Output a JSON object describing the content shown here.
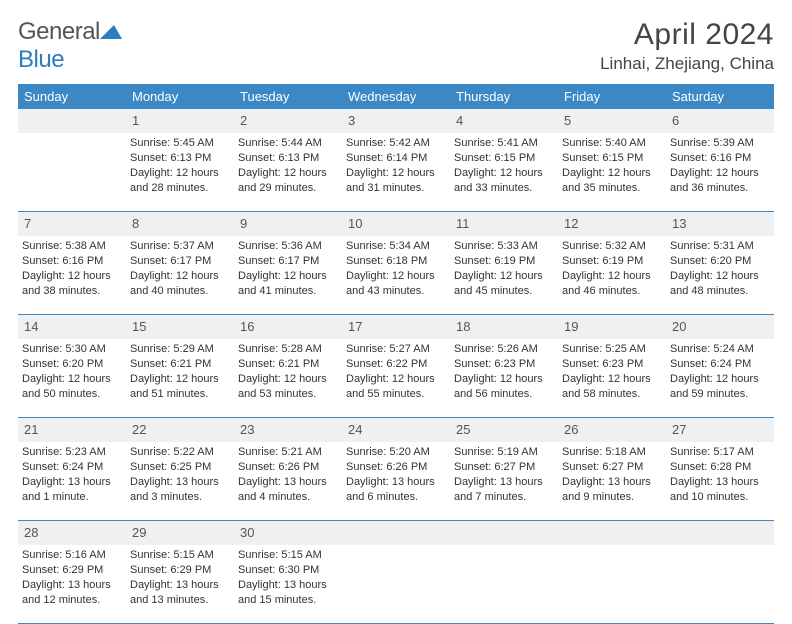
{
  "header": {
    "logo_general": "General",
    "logo_blue": "Blue",
    "month_title": "April 2024",
    "location": "Linhai, Zhejiang, China"
  },
  "colors": {
    "header_bar": "#3b88c4",
    "daynum_bg": "#eef0f2",
    "text": "#333333",
    "logo_blue": "#2d7bc0",
    "grid_line": "#3b88c4",
    "background": "#ffffff"
  },
  "weekdays": [
    "Sunday",
    "Monday",
    "Tuesday",
    "Wednesday",
    "Thursday",
    "Friday",
    "Saturday"
  ],
  "weeks": [
    [
      {
        "day": "",
        "lines": []
      },
      {
        "day": "1",
        "lines": [
          "Sunrise: 5:45 AM",
          "Sunset: 6:13 PM",
          "Daylight: 12 hours and 28 minutes."
        ]
      },
      {
        "day": "2",
        "lines": [
          "Sunrise: 5:44 AM",
          "Sunset: 6:13 PM",
          "Daylight: 12 hours and 29 minutes."
        ]
      },
      {
        "day": "3",
        "lines": [
          "Sunrise: 5:42 AM",
          "Sunset: 6:14 PM",
          "Daylight: 12 hours and 31 minutes."
        ]
      },
      {
        "day": "4",
        "lines": [
          "Sunrise: 5:41 AM",
          "Sunset: 6:15 PM",
          "Daylight: 12 hours and 33 minutes."
        ]
      },
      {
        "day": "5",
        "lines": [
          "Sunrise: 5:40 AM",
          "Sunset: 6:15 PM",
          "Daylight: 12 hours and 35 minutes."
        ]
      },
      {
        "day": "6",
        "lines": [
          "Sunrise: 5:39 AM",
          "Sunset: 6:16 PM",
          "Daylight: 12 hours and 36 minutes."
        ]
      }
    ],
    [
      {
        "day": "7",
        "lines": [
          "Sunrise: 5:38 AM",
          "Sunset: 6:16 PM",
          "Daylight: 12 hours and 38 minutes."
        ]
      },
      {
        "day": "8",
        "lines": [
          "Sunrise: 5:37 AM",
          "Sunset: 6:17 PM",
          "Daylight: 12 hours and 40 minutes."
        ]
      },
      {
        "day": "9",
        "lines": [
          "Sunrise: 5:36 AM",
          "Sunset: 6:17 PM",
          "Daylight: 12 hours and 41 minutes."
        ]
      },
      {
        "day": "10",
        "lines": [
          "Sunrise: 5:34 AM",
          "Sunset: 6:18 PM",
          "Daylight: 12 hours and 43 minutes."
        ]
      },
      {
        "day": "11",
        "lines": [
          "Sunrise: 5:33 AM",
          "Sunset: 6:19 PM",
          "Daylight: 12 hours and 45 minutes."
        ]
      },
      {
        "day": "12",
        "lines": [
          "Sunrise: 5:32 AM",
          "Sunset: 6:19 PM",
          "Daylight: 12 hours and 46 minutes."
        ]
      },
      {
        "day": "13",
        "lines": [
          "Sunrise: 5:31 AM",
          "Sunset: 6:20 PM",
          "Daylight: 12 hours and 48 minutes."
        ]
      }
    ],
    [
      {
        "day": "14",
        "lines": [
          "Sunrise: 5:30 AM",
          "Sunset: 6:20 PM",
          "Daylight: 12 hours and 50 minutes."
        ]
      },
      {
        "day": "15",
        "lines": [
          "Sunrise: 5:29 AM",
          "Sunset: 6:21 PM",
          "Daylight: 12 hours and 51 minutes."
        ]
      },
      {
        "day": "16",
        "lines": [
          "Sunrise: 5:28 AM",
          "Sunset: 6:21 PM",
          "Daylight: 12 hours and 53 minutes."
        ]
      },
      {
        "day": "17",
        "lines": [
          "Sunrise: 5:27 AM",
          "Sunset: 6:22 PM",
          "Daylight: 12 hours and 55 minutes."
        ]
      },
      {
        "day": "18",
        "lines": [
          "Sunrise: 5:26 AM",
          "Sunset: 6:23 PM",
          "Daylight: 12 hours and 56 minutes."
        ]
      },
      {
        "day": "19",
        "lines": [
          "Sunrise: 5:25 AM",
          "Sunset: 6:23 PM",
          "Daylight: 12 hours and 58 minutes."
        ]
      },
      {
        "day": "20",
        "lines": [
          "Sunrise: 5:24 AM",
          "Sunset: 6:24 PM",
          "Daylight: 12 hours and 59 minutes."
        ]
      }
    ],
    [
      {
        "day": "21",
        "lines": [
          "Sunrise: 5:23 AM",
          "Sunset: 6:24 PM",
          "Daylight: 13 hours and 1 minute."
        ]
      },
      {
        "day": "22",
        "lines": [
          "Sunrise: 5:22 AM",
          "Sunset: 6:25 PM",
          "Daylight: 13 hours and 3 minutes."
        ]
      },
      {
        "day": "23",
        "lines": [
          "Sunrise: 5:21 AM",
          "Sunset: 6:26 PM",
          "Daylight: 13 hours and 4 minutes."
        ]
      },
      {
        "day": "24",
        "lines": [
          "Sunrise: 5:20 AM",
          "Sunset: 6:26 PM",
          "Daylight: 13 hours and 6 minutes."
        ]
      },
      {
        "day": "25",
        "lines": [
          "Sunrise: 5:19 AM",
          "Sunset: 6:27 PM",
          "Daylight: 13 hours and 7 minutes."
        ]
      },
      {
        "day": "26",
        "lines": [
          "Sunrise: 5:18 AM",
          "Sunset: 6:27 PM",
          "Daylight: 13 hours and 9 minutes."
        ]
      },
      {
        "day": "27",
        "lines": [
          "Sunrise: 5:17 AM",
          "Sunset: 6:28 PM",
          "Daylight: 13 hours and 10 minutes."
        ]
      }
    ],
    [
      {
        "day": "28",
        "lines": [
          "Sunrise: 5:16 AM",
          "Sunset: 6:29 PM",
          "Daylight: 13 hours and 12 minutes."
        ]
      },
      {
        "day": "29",
        "lines": [
          "Sunrise: 5:15 AM",
          "Sunset: 6:29 PM",
          "Daylight: 13 hours and 13 minutes."
        ]
      },
      {
        "day": "30",
        "lines": [
          "Sunrise: 5:15 AM",
          "Sunset: 6:30 PM",
          "Daylight: 13 hours and 15 minutes."
        ]
      },
      {
        "day": "",
        "lines": []
      },
      {
        "day": "",
        "lines": []
      },
      {
        "day": "",
        "lines": []
      },
      {
        "day": "",
        "lines": []
      }
    ]
  ]
}
